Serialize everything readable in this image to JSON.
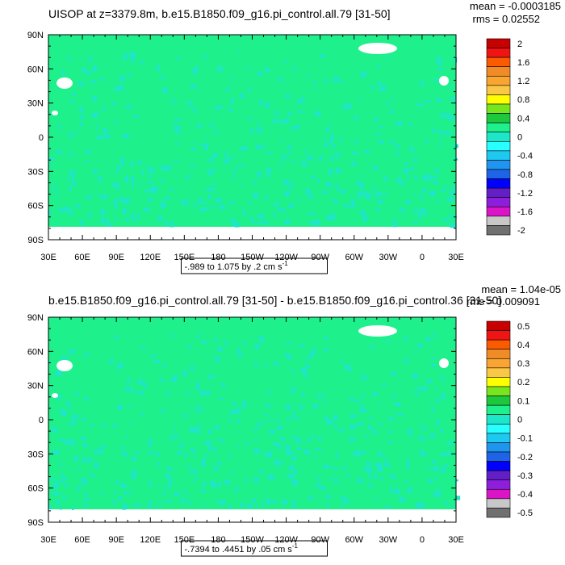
{
  "chart_data": [
    {
      "type": "heatmap",
      "title": "UISOP at z=3379.8m, b.e15.B1850.f09_g16.pi_control.all.79 [31-50]",
      "stats": {
        "mean": "mean = -0.0003185",
        "rms": "rms = 0.02552"
      },
      "yticks": [
        "90N",
        "60N",
        "30N",
        "0",
        "30S",
        "60S",
        "90S"
      ],
      "xticks": [
        "30E",
        "60E",
        "90E",
        "120E",
        "150E",
        "180",
        "150W",
        "120W",
        "90W",
        "60W",
        "30W",
        "0",
        "30E"
      ],
      "range_label": "-.989 to 1.075 by .2 cm s",
      "range_unit_sup": "-1",
      "colorbar": {
        "labels": [
          "2",
          "1.6",
          "1.2",
          "0.8",
          "0.4",
          "0",
          "-0.4",
          "-0.8",
          "-1.2",
          "-1.6",
          "-2"
        ],
        "colors": [
          "#c80000",
          "#f01414",
          "#fa5a00",
          "#f08c28",
          "#faa532",
          "#fac846",
          "#ffff00",
          "#78e61e",
          "#1ec83c",
          "#1ef08c",
          "#1ee6c8",
          "#28ffff",
          "#1ec8f0",
          "#1e96f0",
          "#1e64e6",
          "#0000ff",
          "#641ec8",
          "#8c1edc",
          "#dc14c8",
          "#c8c8c8",
          "#707070"
        ]
      },
      "background_value": 0,
      "colors": {
        "background": "#1ef08c",
        "minor": "#1ee6c8"
      }
    },
    {
      "type": "heatmap",
      "title": "b.e15.B1850.f09_g16.pi_control.all.79 [31-50] - b.e15.B1850.f09_g16.pi_control.36 [31-50]",
      "stats": {
        "mean": "mean = 1.04e-05",
        "rms": "rms = 0.009091"
      },
      "yticks": [
        "90N",
        "60N",
        "30N",
        "0",
        "30S",
        "60S",
        "90S"
      ],
      "xticks": [
        "30E",
        "60E",
        "90E",
        "120E",
        "150E",
        "180",
        "150W",
        "120W",
        "90W",
        "60W",
        "30W",
        "0",
        "30E"
      ],
      "range_label": "-.7394 to .4451 by .05 cm s",
      "range_unit_sup": "-1",
      "colorbar": {
        "labels": [
          "0.5",
          "0.4",
          "0.3",
          "0.2",
          "0.1",
          "0",
          "-0.1",
          "-0.2",
          "-0.3",
          "-0.4",
          "-0.5"
        ],
        "colors": [
          "#c80000",
          "#f01414",
          "#fa5a00",
          "#f08c28",
          "#faa532",
          "#fac846",
          "#ffff00",
          "#78e61e",
          "#1ec83c",
          "#1ef08c",
          "#1ee6c8",
          "#28ffff",
          "#1ec8f0",
          "#1e96f0",
          "#1e64e6",
          "#0000ff",
          "#641ec8",
          "#8c1edc",
          "#dc14c8",
          "#c8c8c8",
          "#707070"
        ]
      },
      "background_value": 0,
      "colors": {
        "background": "#1ef08c",
        "minor": "#1ee6c8"
      }
    }
  ]
}
